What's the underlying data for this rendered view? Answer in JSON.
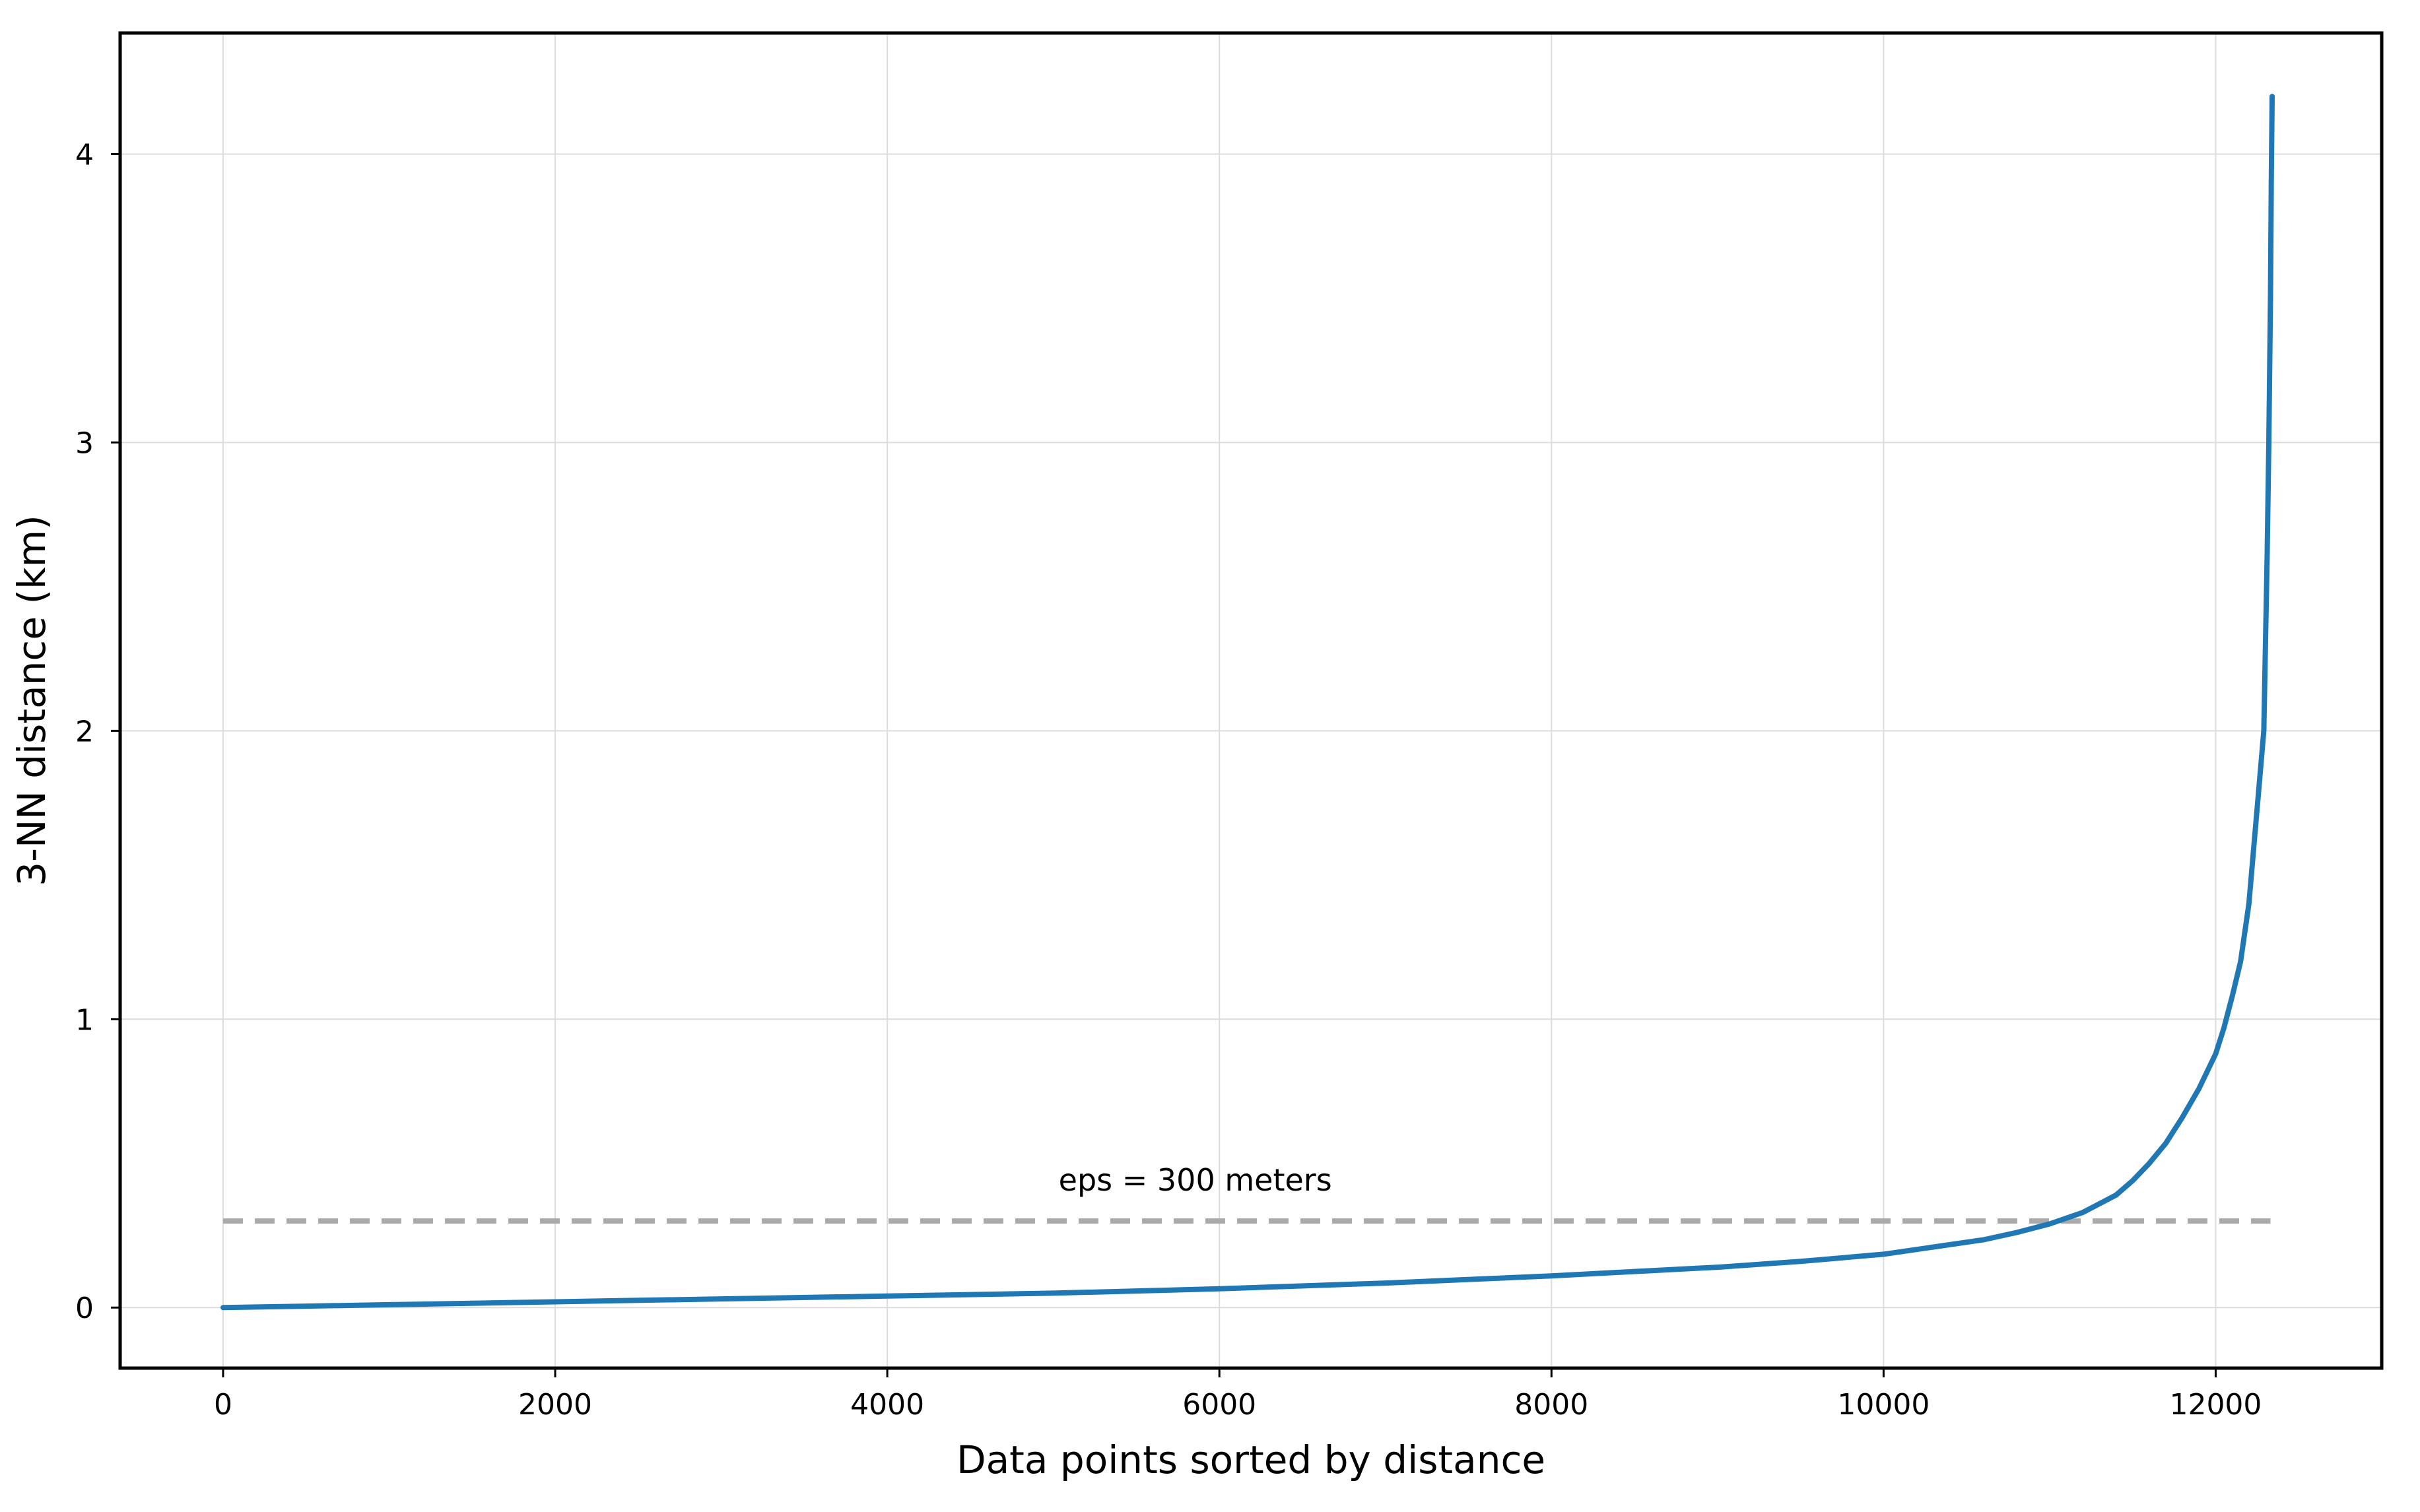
{
  "chart_data": {
    "type": "line",
    "title": "",
    "xlabel": "Data points sorted by distance",
    "ylabel": "3-NN distance (km)",
    "xlim": [
      -620,
      13000
    ],
    "ylim": [
      -0.21,
      4.42
    ],
    "x_ticks": [
      0,
      2000,
      4000,
      6000,
      8000,
      10000,
      12000
    ],
    "y_ticks": [
      0,
      1,
      2,
      3,
      4
    ],
    "x_tick_labels": [
      "0",
      "2000",
      "4000",
      "6000",
      "8000",
      "10000",
      "12000"
    ],
    "y_tick_labels": [
      "0",
      "1",
      "2",
      "3",
      "4"
    ],
    "grid": true,
    "legend": "none",
    "series": [
      {
        "color": "#1f77b4",
        "x": [
          0,
          500,
          1000,
          2000,
          3000,
          4000,
          5000,
          6000,
          7000,
          8000,
          8500,
          9000,
          9500,
          10000,
          10300,
          10600,
          10800,
          11000,
          11200,
          11400,
          11500,
          11600,
          11700,
          11800,
          11900,
          12000,
          12050,
          12100,
          12150,
          12200,
          12230,
          12260,
          12290,
          12310,
          12320,
          12330,
          12335,
          12340
        ],
        "y": [
          0.0,
          0.005,
          0.01,
          0.02,
          0.03,
          0.04,
          0.05,
          0.065,
          0.085,
          0.11,
          0.125,
          0.14,
          0.16,
          0.185,
          0.21,
          0.235,
          0.26,
          0.29,
          0.33,
          0.39,
          0.44,
          0.5,
          0.57,
          0.66,
          0.76,
          0.88,
          0.97,
          1.08,
          1.2,
          1.4,
          1.6,
          1.8,
          2.0,
          2.6,
          3.0,
          3.5,
          3.9,
          4.2
        ]
      }
    ],
    "reference_line": {
      "label": "eps = 300 meters",
      "y": 0.3,
      "x_start": 0,
      "x_end": 12330,
      "color": "#aaaaaa",
      "style": "dashed",
      "label_x": 5000
    }
  }
}
